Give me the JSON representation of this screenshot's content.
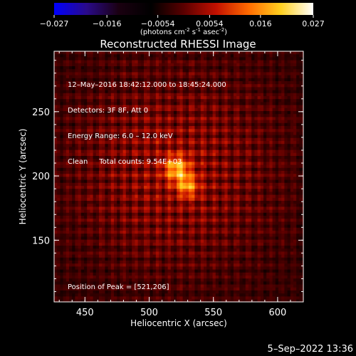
{
  "chart_data": {
    "type": "heatmap",
    "title": "Reconstructed RHESSI Image",
    "xlabel": "Heliocentric X (arcsec)",
    "ylabel": "Heliocentric Y (arcsec)",
    "xlim": [
      426,
      620
    ],
    "ylim": [
      102,
      297
    ],
    "xticks": [
      450,
      500,
      550,
      600
    ],
    "yticks": [
      150,
      200,
      250
    ],
    "colorbar": {
      "label_main": "(photons cm",
      "label_sup1": "-2",
      "label_mid1": " s",
      "label_sup2": "-1",
      "label_mid2": " asec",
      "label_sup3": "-2",
      "label_end": ")",
      "range": [
        -0.027,
        0.027
      ],
      "ticks": [
        "−0.027",
        "−0.016",
        "−0.0054",
        "0.0054",
        "0.016",
        "0.027"
      ],
      "colormap": [
        "#0000ff",
        "#2a0a8a",
        "#1a0010",
        "#000000",
        "#5a0000",
        "#c21000",
        "#ff6a00",
        "#ffd020",
        "#ffffff"
      ]
    },
    "sources": [
      {
        "x": 521,
        "y": 206,
        "peak": 0.027
      },
      {
        "x": 529,
        "y": 192,
        "peak": 0.022
      }
    ],
    "peak_position": [
      521,
      206
    ]
  },
  "info": {
    "time_range": "12–May–2016 18:42:12.000 to 18:45:24.000",
    "detectors": "Detectors: 3F 8F, Att 0",
    "energy": "Energy Range: 6.0 – 12.0 keV",
    "clean": "Clean     Total counts: 9.54E+03",
    "peak": "Position of Peak = [521,206]"
  },
  "timestamp": "5–Sep–2022 13:36"
}
